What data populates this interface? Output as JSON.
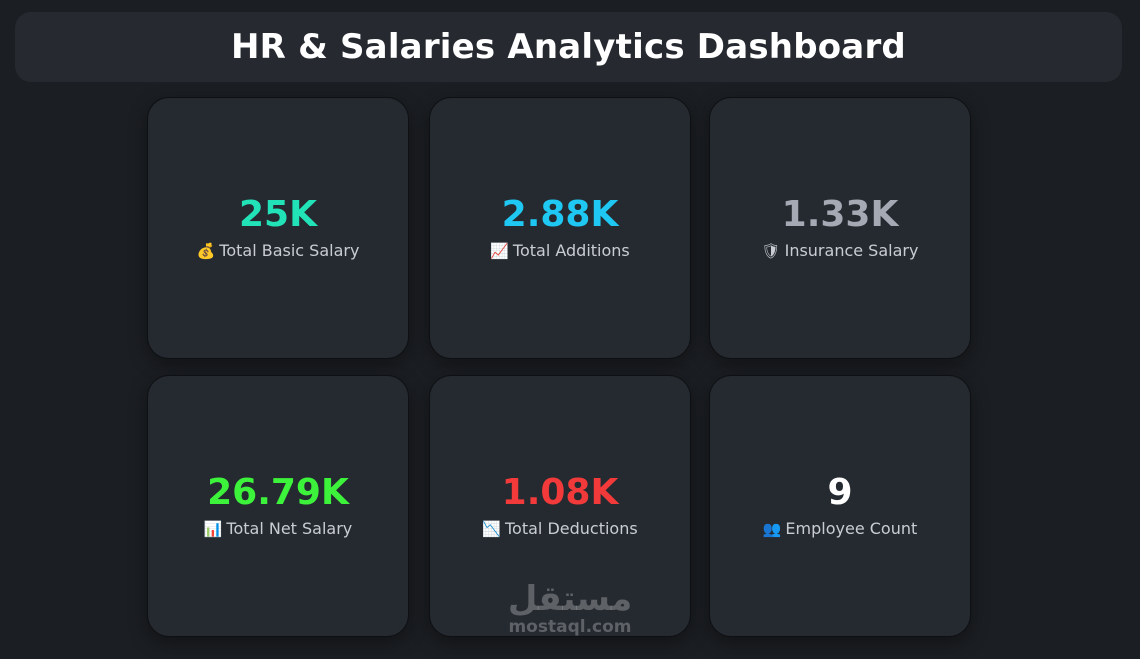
{
  "header": {
    "title": "HR & Salaries Analytics Dashboard"
  },
  "cards": [
    {
      "value": "25K",
      "label": "Total Basic Salary",
      "icon": "💰",
      "icon_name": "money-bag-icon",
      "color": "#22e3b8"
    },
    {
      "value": "2.88K",
      "label": "Total Additions",
      "icon": "📈",
      "icon_name": "chart-increasing-icon",
      "color": "#1fc8f2"
    },
    {
      "value": "1.33K",
      "label": "Insurance Salary",
      "icon": "🛡",
      "icon_name": "shield-icon",
      "color": "#a4a9b3"
    },
    {
      "value": "26.79K",
      "label": "Total Net Salary",
      "icon": "📊",
      "icon_name": "bar-chart-icon",
      "color": "#3df23a"
    },
    {
      "value": "1.08K",
      "label": "Total Deductions",
      "icon": "📉",
      "icon_name": "chart-decreasing-icon",
      "color": "#f23a3a"
    },
    {
      "value": "9",
      "label": "Employee Count",
      "icon": "👥",
      "icon_name": "people-icon",
      "color": "#ffffff"
    }
  ],
  "watermark": {
    "arabic": "مستقل",
    "latin": "mostaql.com"
  }
}
